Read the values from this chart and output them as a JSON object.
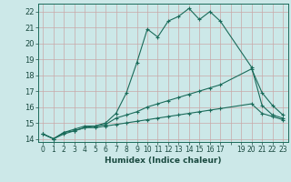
{
  "title": "",
  "xlabel": "Humidex (Indice chaleur)",
  "ylabel": "",
  "bg_color": "#cce8e8",
  "grid_color": "#b0d0d0",
  "line_color": "#1a6b5a",
  "xlim": [
    -0.5,
    23.5
  ],
  "ylim": [
    13.8,
    22.5
  ],
  "yticks": [
    14,
    15,
    16,
    17,
    18,
    19,
    20,
    21,
    22
  ],
  "xticks": [
    0,
    1,
    2,
    3,
    4,
    5,
    6,
    7,
    8,
    9,
    10,
    11,
    12,
    13,
    14,
    15,
    16,
    17,
    18,
    19,
    20,
    21,
    22,
    23
  ],
  "xtick_labels": [
    "0",
    "1",
    "2",
    "3",
    "4",
    "5",
    "6",
    "7",
    "8",
    "9",
    "10",
    "11",
    "12",
    "13",
    "14",
    "15",
    "16",
    "17",
    "",
    "19",
    "20",
    "21",
    "22",
    "23"
  ],
  "series1_x": [
    0,
    1,
    2,
    3,
    4,
    5,
    6,
    7,
    8,
    9,
    10,
    11,
    12,
    13,
    14,
    15,
    16,
    17,
    20,
    21,
    22,
    23
  ],
  "series1_y": [
    14.3,
    14.0,
    14.4,
    14.6,
    14.8,
    14.8,
    15.0,
    15.6,
    16.9,
    18.8,
    20.9,
    20.4,
    21.4,
    21.7,
    22.2,
    21.5,
    22.0,
    21.4,
    18.5,
    16.1,
    15.5,
    15.3
  ],
  "series2_x": [
    0,
    1,
    2,
    3,
    4,
    5,
    6,
    7,
    8,
    9,
    10,
    11,
    12,
    13,
    14,
    15,
    16,
    17,
    20,
    21,
    22,
    23
  ],
  "series2_y": [
    14.3,
    14.0,
    14.4,
    14.5,
    14.7,
    14.8,
    14.9,
    15.3,
    15.5,
    15.7,
    16.0,
    16.2,
    16.4,
    16.6,
    16.8,
    17.0,
    17.2,
    17.4,
    18.4,
    16.9,
    16.1,
    15.5
  ],
  "series3_x": [
    0,
    1,
    2,
    3,
    4,
    5,
    6,
    7,
    8,
    9,
    10,
    11,
    12,
    13,
    14,
    15,
    16,
    17,
    20,
    21,
    22,
    23
  ],
  "series3_y": [
    14.3,
    14.0,
    14.3,
    14.5,
    14.7,
    14.7,
    14.8,
    14.9,
    15.0,
    15.1,
    15.2,
    15.3,
    15.4,
    15.5,
    15.6,
    15.7,
    15.8,
    15.9,
    16.2,
    15.6,
    15.4,
    15.2
  ]
}
